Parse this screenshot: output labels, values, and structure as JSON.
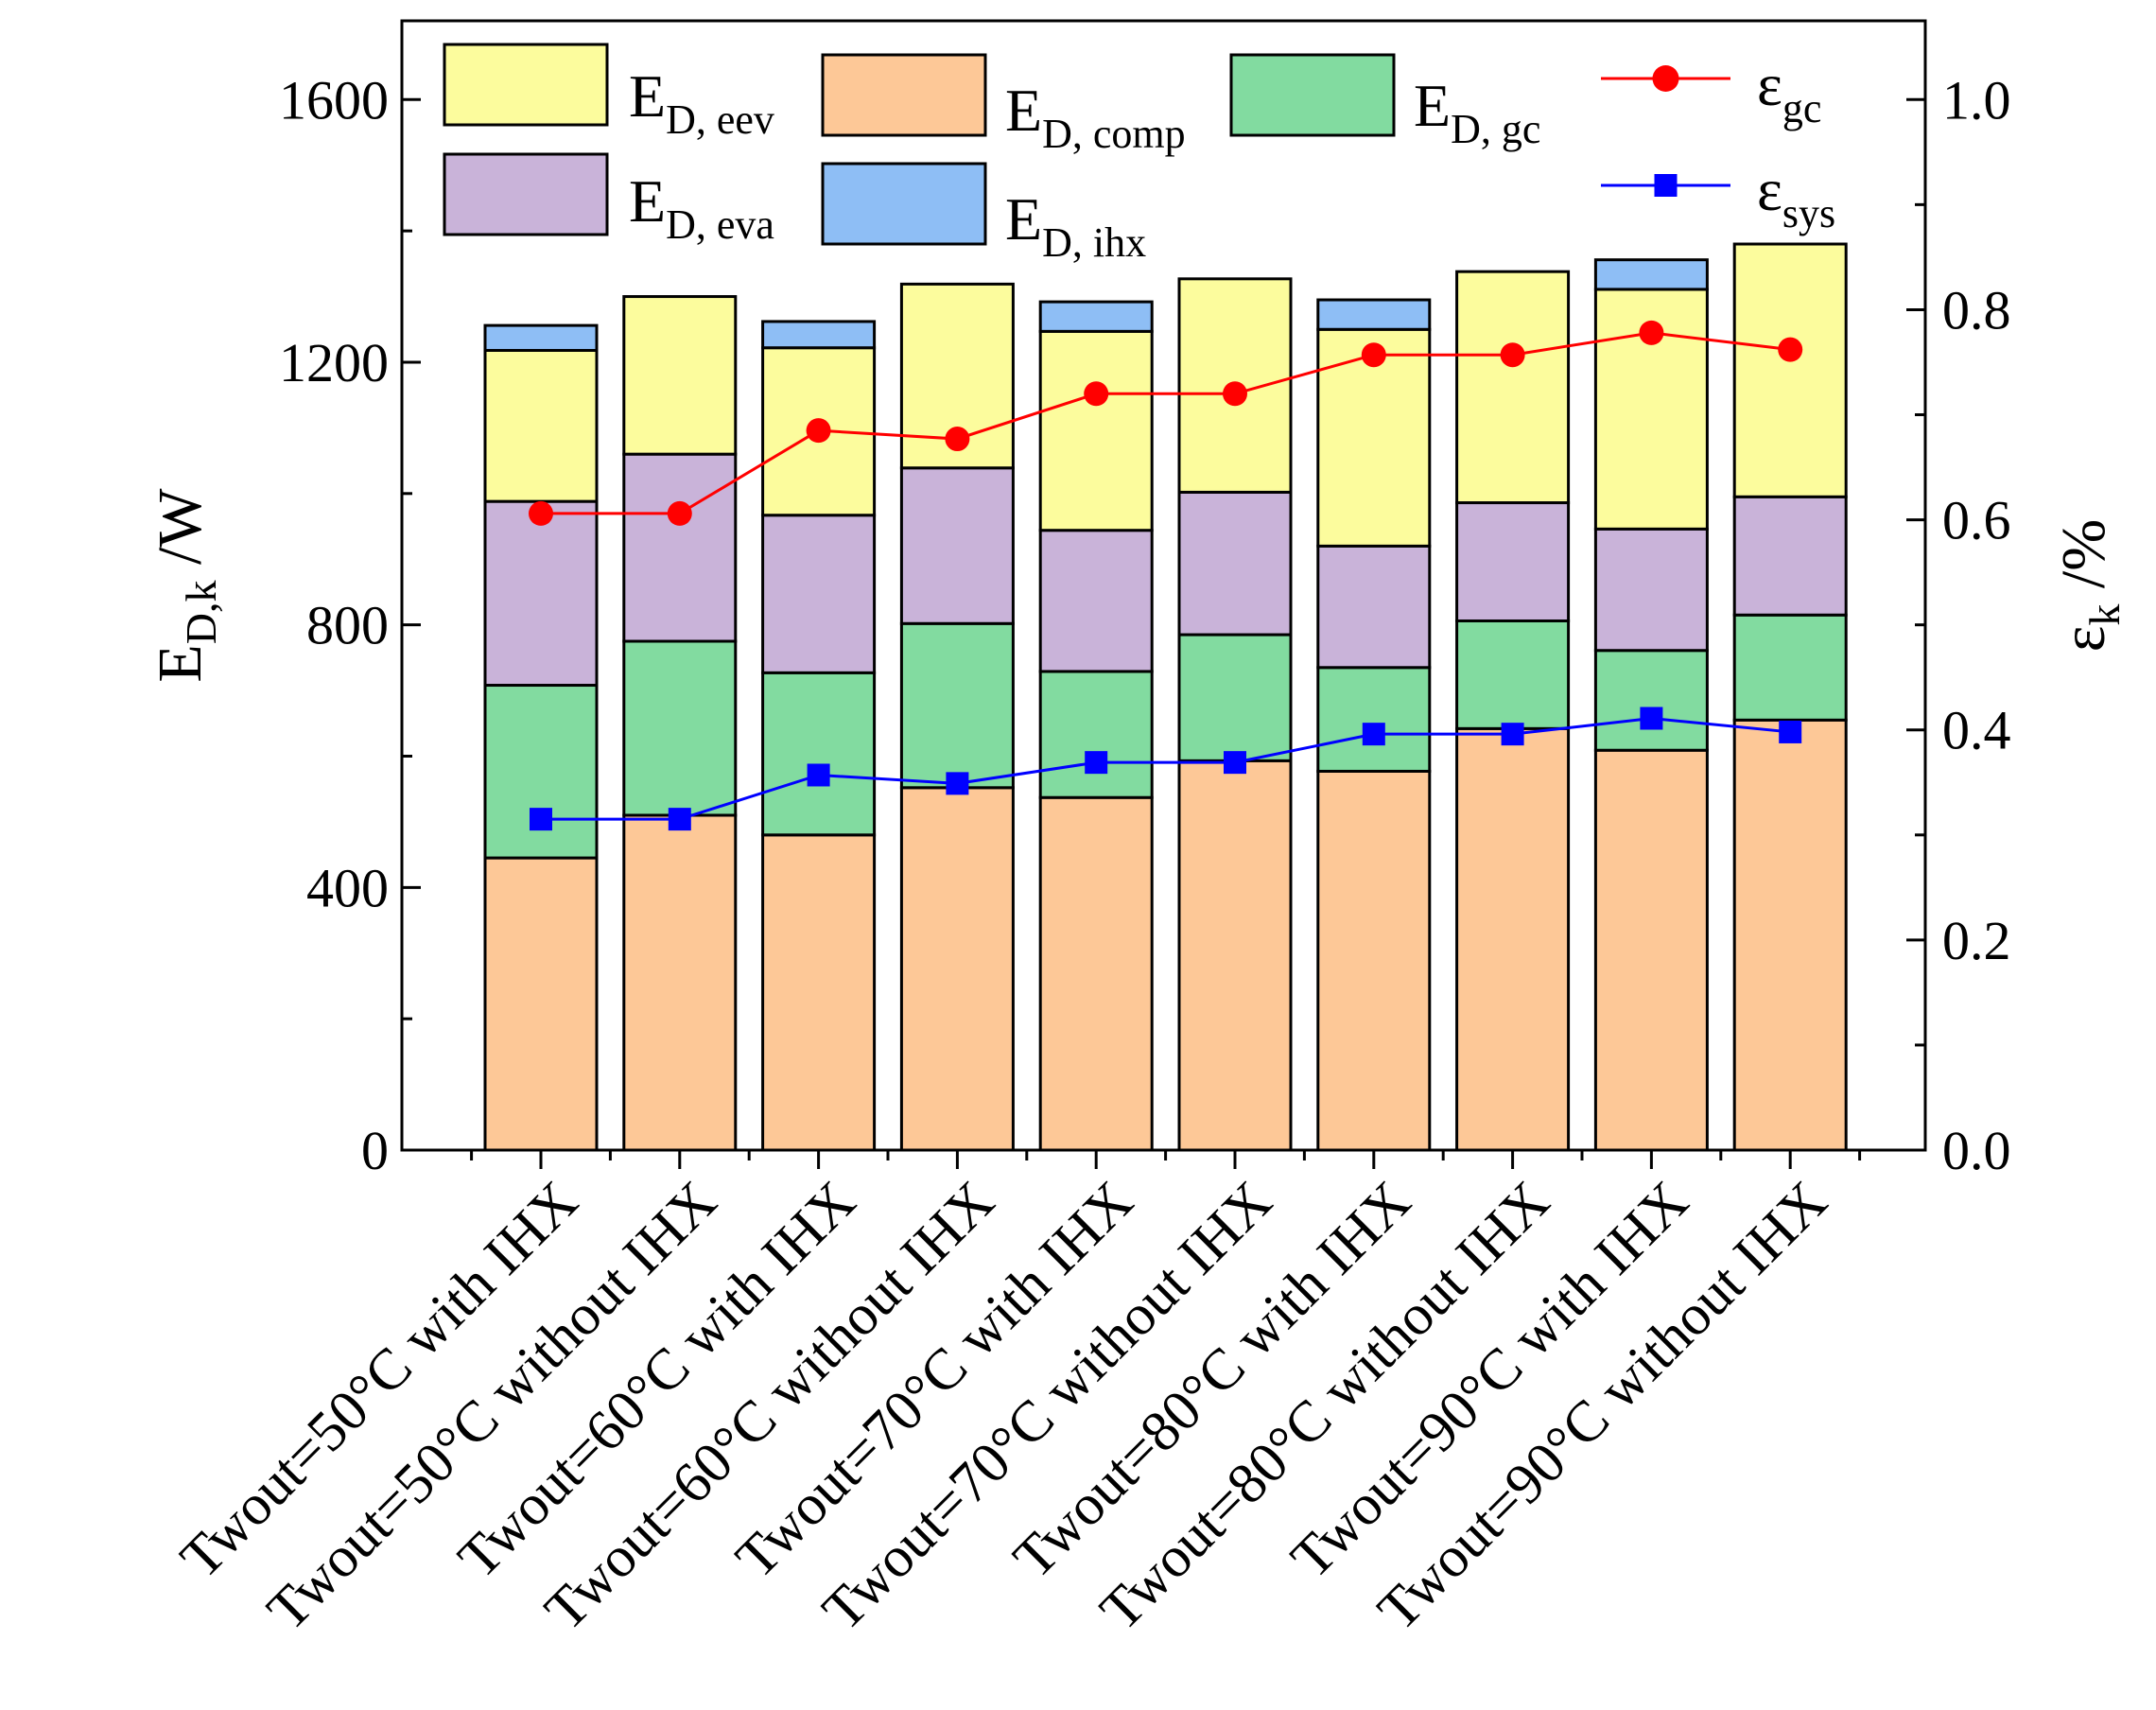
{
  "chart_data": {
    "type": "bar",
    "stacked": true,
    "title": "",
    "categories": [
      "Twout=50°C with IHX",
      "Twout=50°C without IHX",
      "Twout=60°C with IHX",
      "Twout=60°C without IHX",
      "Twout=70°C with IHX",
      "Twout=70°C without IHX",
      "Twout=80°C with IHX",
      "Twout=80°C without IHX",
      "Twout=90°C with IHX",
      "Twout=90°C without IHX"
    ],
    "ylabel": {
      "main": "E",
      "sub": "D,k",
      "unit": " /W"
    },
    "y2label": {
      "main": "ε",
      "sub": "k",
      "unit": " /%"
    },
    "ylim": [
      0,
      1720
    ],
    "y2lim": [
      0,
      1.075
    ],
    "yticks": [
      0,
      400,
      800,
      1200,
      1600
    ],
    "y2ticks": [
      0.0,
      0.2,
      0.4,
      0.6,
      0.8,
      1.0
    ],
    "y2tick_labels": [
      "0.0",
      "0.2",
      "0.4",
      "0.6",
      "0.8",
      "1.0"
    ],
    "series": [
      {
        "key": "comp",
        "name": "E",
        "sub": "D, comp",
        "color": "#FDC897",
        "values": [
          445,
          510,
          480,
          552,
          537,
          593,
          577,
          642,
          609,
          655
        ]
      },
      {
        "key": "gc",
        "name": "E",
        "sub": "D, gc",
        "color": "#82DBA0",
        "values": [
          263,
          265,
          247,
          250,
          192,
          192,
          158,
          164,
          152,
          160
        ]
      },
      {
        "key": "eva",
        "name": "E",
        "sub": "D, eva",
        "color": "#C9B3D9",
        "values": [
          280,
          285,
          240,
          237,
          215,
          217,
          185,
          180,
          185,
          180
        ]
      },
      {
        "key": "eev",
        "name": "E",
        "sub": "D, eev",
        "color": "#FCFC9D",
        "values": [
          230,
          240,
          255,
          280,
          303,
          325,
          330,
          352,
          365,
          385
        ]
      },
      {
        "key": "ihx",
        "name": "E",
        "sub": "D, ihx",
        "color": "#8EBEF5",
        "values": [
          38,
          0,
          40,
          0,
          45,
          0,
          45,
          0,
          45,
          0
        ]
      }
    ],
    "line_series": [
      {
        "key": "eps_gc",
        "name": "ε",
        "sub": "gc",
        "color": "#FF0000",
        "marker": "circle",
        "axis": "right",
        "values": [
          0.606,
          0.606,
          0.685,
          0.677,
          0.72,
          0.72,
          0.757,
          0.757,
          0.778,
          0.762
        ]
      },
      {
        "key": "eps_sys",
        "name": "ε",
        "sub": "sys",
        "color": "#0000FF",
        "marker": "square",
        "axis": "right",
        "values": [
          0.315,
          0.315,
          0.357,
          0.349,
          0.369,
          0.369,
          0.396,
          0.396,
          0.411,
          0.398
        ]
      }
    ],
    "legend_position": "top"
  }
}
